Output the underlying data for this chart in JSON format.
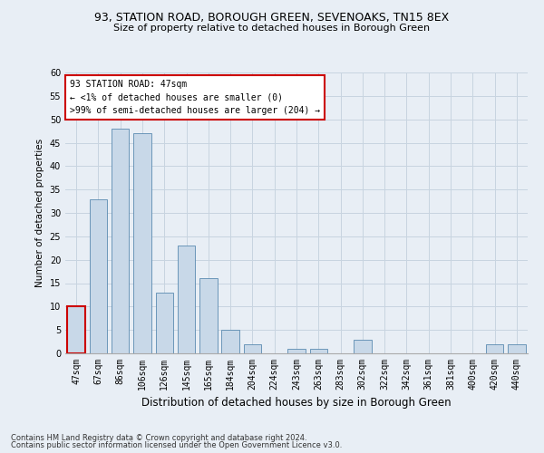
{
  "title": "93, STATION ROAD, BOROUGH GREEN, SEVENOAKS, TN15 8EX",
  "subtitle": "Size of property relative to detached houses in Borough Green",
  "xlabel": "Distribution of detached houses by size in Borough Green",
  "ylabel": "Number of detached properties",
  "categories": [
    "47sqm",
    "67sqm",
    "86sqm",
    "106sqm",
    "126sqm",
    "145sqm",
    "165sqm",
    "184sqm",
    "204sqm",
    "224sqm",
    "243sqm",
    "263sqm",
    "283sqm",
    "302sqm",
    "322sqm",
    "342sqm",
    "361sqm",
    "381sqm",
    "400sqm",
    "420sqm",
    "440sqm"
  ],
  "values": [
    10,
    33,
    48,
    47,
    13,
    23,
    16,
    5,
    2,
    0,
    1,
    1,
    0,
    3,
    0,
    0,
    0,
    0,
    0,
    2,
    2
  ],
  "highlight_index": 0,
  "bar_color": "#c8d8e8",
  "bar_edge_color": "#5a8ab0",
  "ylim": [
    0,
    60
  ],
  "yticks": [
    0,
    5,
    10,
    15,
    20,
    25,
    30,
    35,
    40,
    45,
    50,
    55,
    60
  ],
  "annotation_text": "93 STATION ROAD: 47sqm\n← <1% of detached houses are smaller (0)\n>99% of semi-detached houses are larger (204) →",
  "annotation_box_facecolor": "#ffffff",
  "annotation_box_edgecolor": "#cc0000",
  "footnote1": "Contains HM Land Registry data © Crown copyright and database right 2024.",
  "footnote2": "Contains public sector information licensed under the Open Government Licence v3.0.",
  "grid_color": "#c8d4e0",
  "bg_color": "#e8eef5",
  "title_fontsize": 9,
  "subtitle_fontsize": 8,
  "xlabel_fontsize": 8.5,
  "ylabel_fontsize": 7.5,
  "tick_fontsize": 7,
  "annotation_fontsize": 7,
  "footnote_fontsize": 6
}
